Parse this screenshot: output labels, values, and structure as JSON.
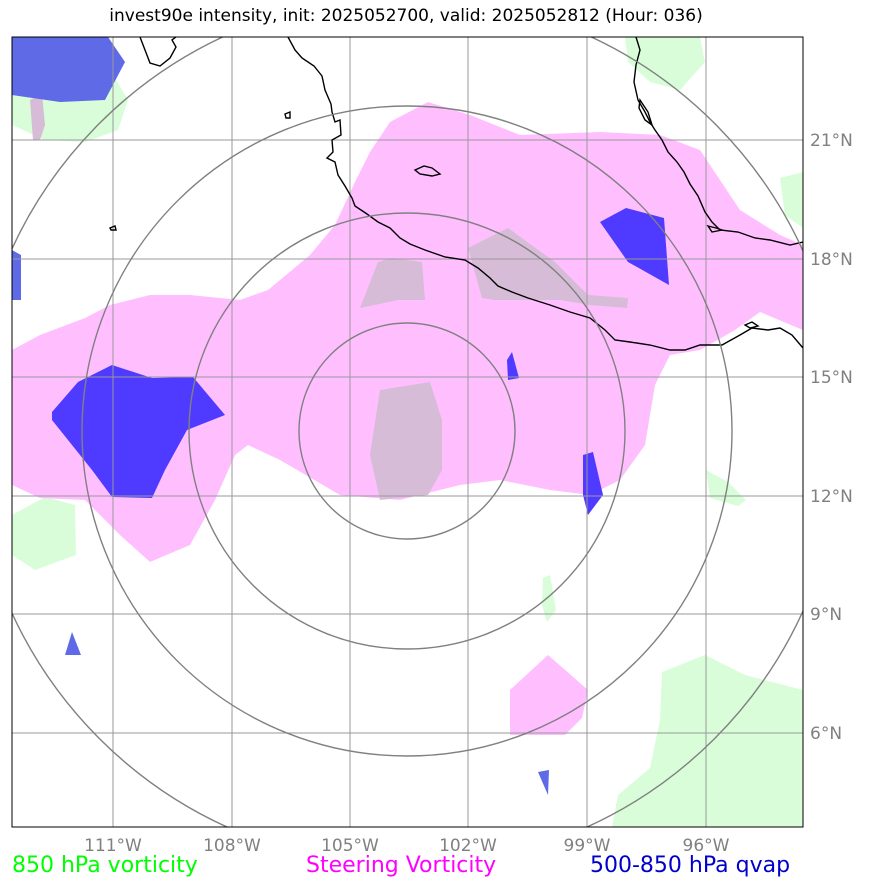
{
  "title": "invest90e intensity, init: 2025052700, valid: 2025052812 (Hour: 036)",
  "lon_labels": [
    "111°W",
    "108°W",
    "105°W",
    "102°W",
    "99°W",
    "96°W"
  ],
  "lat_labels": [
    "21°N",
    "18°N",
    "15°N",
    "12°N",
    "9°N",
    "6°N"
  ],
  "legend": {
    "vort850": {
      "label": "850 hPa vorticity",
      "color": "#00ff00"
    },
    "steering": {
      "label": "Steering Vorticity",
      "color": "#ff00ff"
    },
    "qvap": {
      "label": "500-850 hPa qvap",
      "color": "#0000cc"
    }
  },
  "colors": {
    "steering_fill": "#ffbfff",
    "vort850_fill": "#d9fdd9",
    "qvap_fill": "#4f3aff",
    "overlap_fill": "#d6bcd6",
    "gridline": "#999999",
    "range_ring": "#808080",
    "coastline": "#000000"
  }
}
